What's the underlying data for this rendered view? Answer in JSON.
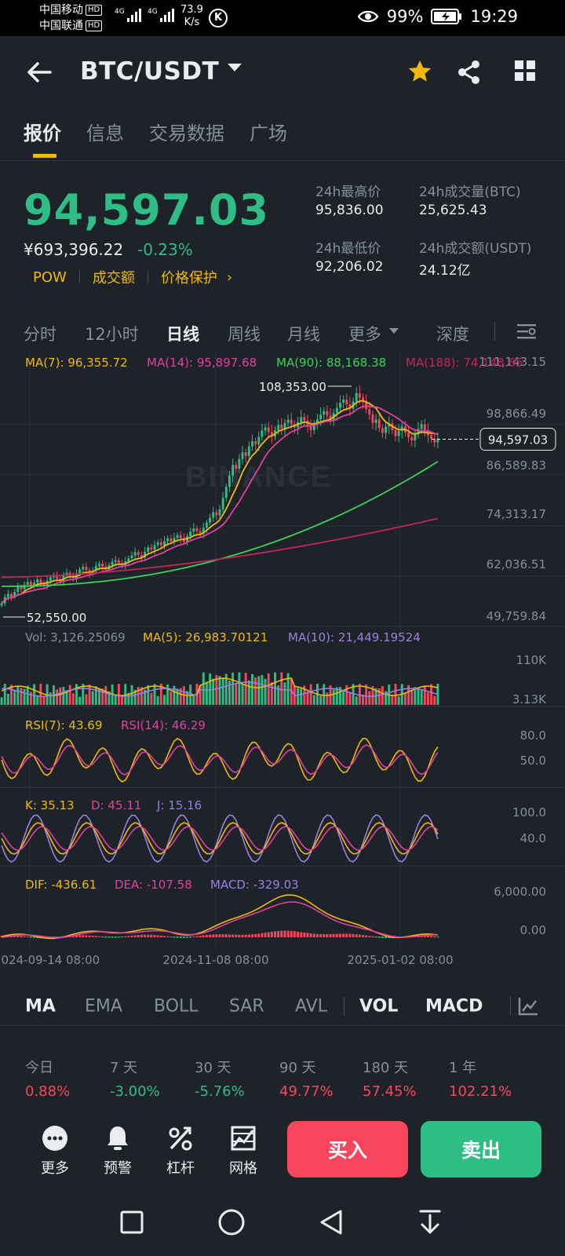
{
  "status_bar": {
    "carrier1": "中国移动",
    "carrier2": "中国联通",
    "hd": "HD",
    "net1": "4G",
    "net2": "4G",
    "speed_value": "73.9",
    "speed_unit": "K/s",
    "k_badge": "K",
    "battery": "99%",
    "time": "19:29"
  },
  "header": {
    "pair": "BTC/USDT",
    "icons": [
      "back-arrow-icon",
      "dropdown-caret-icon",
      "star-icon",
      "share-icon",
      "grid-icon"
    ],
    "star_color": "#f0b90b"
  },
  "tabs": [
    {
      "label": "报价",
      "active": true
    },
    {
      "label": "信息",
      "active": false
    },
    {
      "label": "交易数据",
      "active": false
    },
    {
      "label": "广场",
      "active": false
    }
  ],
  "price": {
    "last": "94,597.03",
    "cny": "¥693,396.22",
    "change": "-0.23%",
    "tags": [
      "POW",
      "成交额",
      "价格保护"
    ],
    "stats": {
      "high_label": "24h最高价",
      "high_value": "95,836.00",
      "low_label": "24h最低价",
      "low_value": "92,206.02",
      "vol_btc_label": "24h成交量(BTC)",
      "vol_btc_value": "25,625.43",
      "vol_usdt_label": "24h成交额(USDT)",
      "vol_usdt_value": "24.12亿"
    }
  },
  "intervals": {
    "items": [
      "分时",
      "12小时",
      "日线",
      "周线",
      "月线",
      "更多"
    ],
    "active": "日线",
    "depth": "深度"
  },
  "chart_data": {
    "type": "candlestick",
    "watermark": "BINANCE",
    "main": {
      "legend": [
        {
          "label": "MA(7): 96,355.72",
          "color": "#f0b90b"
        },
        {
          "label": "MA(14): 95,897.68",
          "color": "#e040a0"
        },
        {
          "label": "MA(90): 88,168.38",
          "color": "#3ecf5c"
        },
        {
          "label": "MA(188): 74,148.65",
          "color": "#c2255c"
        }
      ],
      "y_ticks": [
        "111,143.15",
        "98,866.49",
        "86,589.83",
        "74,313.17",
        "62,036.51",
        "49,759.84"
      ],
      "ylim": [
        49759.84,
        111143.15
      ],
      "last_price": 94597.03,
      "last_price_label": "94,597.03",
      "max_label": "108,353.00",
      "min_label": "52,550.00",
      "max": 108353.0,
      "min": 52550.0,
      "close_series": [
        53200,
        54800,
        55600,
        54900,
        56100,
        57400,
        56800,
        57900,
        58600,
        57800,
        58400,
        59200,
        58300,
        57600,
        58900,
        59800,
        60100,
        59400,
        58800,
        60300,
        60900,
        60200,
        59600,
        60700,
        61800,
        62400,
        61600,
        60800,
        61500,
        62600,
        63200,
        62500,
        61800,
        62900,
        63700,
        64100,
        63400,
        62800,
        63800,
        64600,
        65300,
        66100,
        65400,
        64800,
        66200,
        67300,
        66800,
        67900,
        68600,
        67800,
        68900,
        69600,
        68800,
        69700,
        70400,
        69600,
        68700,
        70100,
        71300,
        72100,
        71400,
        70800,
        72300,
        73600,
        74800,
        76200,
        75400,
        76900,
        79800,
        82600,
        85400,
        88100,
        87200,
        89600,
        91300,
        90400,
        92800,
        94100,
        93300,
        95200,
        96800,
        97600,
        96400,
        95300,
        96900,
        98200,
        97300,
        98700,
        99500,
        98400,
        97600,
        98900,
        100200,
        99300,
        97800,
        96900,
        98400,
        99600,
        100800,
        101700,
        100600,
        99500,
        101200,
        102500,
        103800,
        104600,
        103400,
        102300,
        104100,
        106200,
        105100,
        104300,
        102200,
        100800,
        98700,
        99600,
        97400,
        96200,
        97800,
        98600,
        96900,
        95400,
        96700,
        97800,
        96300,
        95100,
        94300,
        95800,
        97200,
        98400,
        96900,
        95600,
        94700,
        93800,
        94597
      ]
    },
    "volume": {
      "legend": [
        {
          "label": "Vol: 3,126.25069",
          "color": "#848e9c"
        },
        {
          "label": "MA(5): 26,983.70121",
          "color": "#f0b90b"
        },
        {
          "label": "MA(10): 21,449.19524",
          "color": "#9c7ee0"
        }
      ],
      "y_ticks": [
        "110K",
        "3.13K"
      ]
    },
    "rsi": {
      "legend": [
        {
          "label": "RSI(7): 43.69",
          "color": "#f0b90b"
        },
        {
          "label": "RSI(14): 46.29",
          "color": "#e040a0"
        }
      ],
      "y_ticks": [
        "80.0",
        "50.0"
      ]
    },
    "kdj": {
      "legend": [
        {
          "label": "K: 35.13",
          "color": "#f0b90b"
        },
        {
          "label": "D: 45.11",
          "color": "#e040a0"
        },
        {
          "label": "J: 15.16",
          "color": "#9c7ee0"
        }
      ],
      "y_ticks": [
        "100.0",
        "40.0"
      ]
    },
    "macd": {
      "legend": [
        {
          "label": "DIF: -436.61",
          "color": "#f0b90b"
        },
        {
          "label": "DEA: -107.58",
          "color": "#e040a0"
        },
        {
          "label": "MACD: -329.03",
          "color": "#9c7ee0"
        }
      ],
      "y_ticks": [
        "6,000.00",
        "0.00"
      ]
    },
    "x_ticks": [
      "2024-09-14 08:00",
      "2024-11-08 08:00",
      "2025-01-02 08:00"
    ],
    "colors": {
      "up": "#2ebd85",
      "down": "#f6465d",
      "grid": "#2b3139"
    }
  },
  "indicators": {
    "items": [
      "MA",
      "EMA",
      "BOLL",
      "SAR",
      "AVL",
      "VOL",
      "MACD"
    ],
    "active": [
      "MA",
      "VOL",
      "MACD"
    ]
  },
  "performance": [
    {
      "label": "今日",
      "value": "0.88%",
      "color": "#f6465d"
    },
    {
      "label": "7 天",
      "value": "-3.00%",
      "color": "#2ebd85"
    },
    {
      "label": "30 天",
      "value": "-5.76%",
      "color": "#2ebd85"
    },
    {
      "label": "90 天",
      "value": "49.77%",
      "color": "#f6465d"
    },
    {
      "label": "180 天",
      "value": "57.45%",
      "color": "#f6465d"
    },
    {
      "label": "1 年",
      "value": "102.21%",
      "color": "#f6465d"
    }
  ],
  "actions": {
    "more": "更多",
    "alert": "预警",
    "leverage": "杠杆",
    "grid": "网格",
    "buy": "买入",
    "sell": "卖出"
  }
}
